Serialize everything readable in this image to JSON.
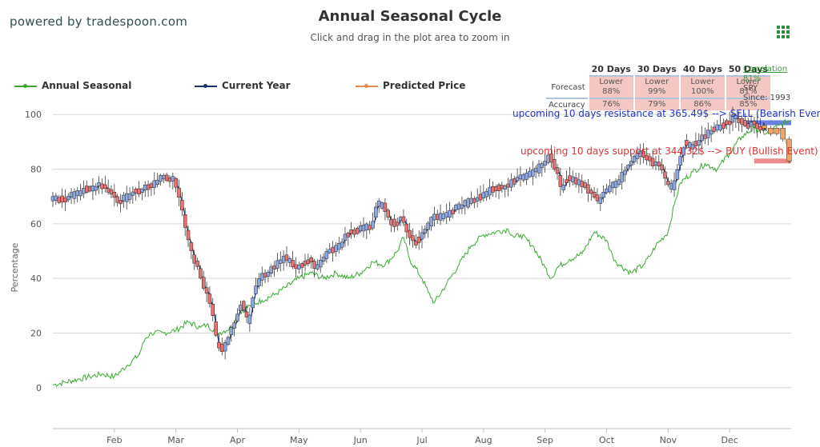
{
  "header": {
    "powered_by": "powered by tradespoon.com",
    "title": "Annual Seasonal Cycle",
    "subtitle": "Click and drag in the plot area to zoom in"
  },
  "legend": [
    {
      "name": "Annual Seasonal",
      "color": "#3aa832"
    },
    {
      "name": "Current Year",
      "color": "#1a2f6e"
    },
    {
      "name": "Predicted Price",
      "color": "#e8894a"
    }
  ],
  "stats_table": {
    "columns": [
      "20 Days",
      "30 Days",
      "40 Days",
      "50 Days"
    ],
    "forecast_label": "Forecast",
    "accuracy_label": "Accuracy",
    "forecast": [
      {
        "dir": "Lower",
        "pct": "88%"
      },
      {
        "dir": "Lower",
        "pct": "99%"
      },
      {
        "dir": "Lower",
        "pct": "100%"
      },
      {
        "dir": "Lower",
        "pct": "81%"
      }
    ],
    "accuracy": [
      "76%",
      "79%",
      "86%",
      "85%"
    ]
  },
  "correlation": {
    "label": "Correlation",
    "value": "81%",
    "symbol": "SPY",
    "since": "Since: 1993"
  },
  "annotations": {
    "resistance": "upcoming 10 days resistance at 365.49$ --> SELL (Bearish Even",
    "support": "upcoming 10 days support at 344.32$ --> BUY (Bullish Event)"
  },
  "colors": {
    "seasonal": "#3aa832",
    "current": "#1a2f6e",
    "candle_up": "#8fa8e0",
    "candle_down": "#e57373",
    "predicted": "#f4a460",
    "resistance": "#6b7fe3",
    "support": "#ec8a8a",
    "grid": "#d8d8d8"
  },
  "chart_data": {
    "type": "line",
    "ylabel": "Percentage",
    "ylim": [
      -15,
      103
    ],
    "yticks": [
      0,
      20,
      40,
      60,
      80,
      100
    ],
    "xlim": [
      0,
      12
    ],
    "months": [
      "Feb",
      "Mar",
      "Apr",
      "May",
      "Jun",
      "Jul",
      "Aug",
      "Sep",
      "Oct",
      "Nov",
      "Dec"
    ],
    "month_positions": [
      1,
      2,
      3,
      4,
      5,
      6,
      7,
      8,
      9,
      10,
      11
    ],
    "resistance_level": 97,
    "support_level": 83,
    "series": [
      {
        "name": "Annual Seasonal",
        "points": [
          [
            0,
            1
          ],
          [
            0.2,
            2
          ],
          [
            0.4,
            3
          ],
          [
            0.6,
            4
          ],
          [
            0.8,
            5
          ],
          [
            1.0,
            4
          ],
          [
            1.2,
            8
          ],
          [
            1.4,
            12
          ],
          [
            1.5,
            18
          ],
          [
            1.6,
            20
          ],
          [
            1.8,
            20
          ],
          [
            2.0,
            21
          ],
          [
            2.2,
            24
          ],
          [
            2.4,
            22
          ],
          [
            2.5,
            23
          ],
          [
            2.7,
            20
          ],
          [
            2.9,
            22
          ],
          [
            3.0,
            27
          ],
          [
            3.2,
            30
          ],
          [
            3.4,
            32
          ],
          [
            3.6,
            34
          ],
          [
            3.8,
            37
          ],
          [
            4.0,
            40
          ],
          [
            4.2,
            42
          ],
          [
            4.4,
            40
          ],
          [
            4.6,
            42
          ],
          [
            4.8,
            40
          ],
          [
            5.0,
            42
          ],
          [
            5.2,
            46
          ],
          [
            5.4,
            45
          ],
          [
            5.6,
            50
          ],
          [
            5.7,
            55
          ],
          [
            5.8,
            47
          ],
          [
            6.0,
            40
          ],
          [
            6.1,
            35
          ],
          [
            6.2,
            31
          ],
          [
            6.4,
            38
          ],
          [
            6.6,
            45
          ],
          [
            6.8,
            52
          ],
          [
            7.0,
            56
          ],
          [
            7.2,
            57
          ],
          [
            7.4,
            58
          ],
          [
            7.5,
            55
          ],
          [
            7.6,
            56
          ],
          [
            7.8,
            52
          ],
          [
            8.0,
            44
          ],
          [
            8.1,
            40
          ],
          [
            8.2,
            44
          ],
          [
            8.4,
            47
          ],
          [
            8.6,
            49
          ],
          [
            8.8,
            57
          ],
          [
            9.0,
            54
          ],
          [
            9.1,
            48
          ],
          [
            9.2,
            45
          ],
          [
            9.4,
            42
          ],
          [
            9.6,
            45
          ],
          [
            9.7,
            48
          ],
          [
            9.8,
            52
          ],
          [
            10.0,
            57
          ],
          [
            10.1,
            67
          ],
          [
            10.2,
            75
          ],
          [
            10.4,
            79
          ],
          [
            10.6,
            82
          ],
          [
            10.8,
            80
          ],
          [
            11.0,
            86
          ],
          [
            11.2,
            92
          ],
          [
            11.4,
            95
          ],
          [
            11.6,
            93
          ],
          [
            11.8,
            96
          ],
          [
            12.0,
            98
          ]
        ]
      },
      {
        "name": "Current Year",
        "points": [
          [
            0,
            69
          ],
          [
            0.2,
            69
          ],
          [
            0.4,
            71
          ],
          [
            0.6,
            73
          ],
          [
            0.8,
            74
          ],
          [
            1.0,
            71
          ],
          [
            1.1,
            68
          ],
          [
            1.3,
            71
          ],
          [
            1.5,
            73
          ],
          [
            1.7,
            75
          ],
          [
            1.8,
            77
          ],
          [
            2.0,
            76
          ],
          [
            2.1,
            68
          ],
          [
            2.2,
            57
          ],
          [
            2.3,
            48
          ],
          [
            2.4,
            43
          ],
          [
            2.5,
            36
          ],
          [
            2.6,
            30
          ],
          [
            2.7,
            16
          ],
          [
            2.8,
            14
          ],
          [
            2.9,
            20
          ],
          [
            3.0,
            25
          ],
          [
            3.1,
            31
          ],
          [
            3.2,
            24
          ],
          [
            3.3,
            35
          ],
          [
            3.4,
            40
          ],
          [
            3.6,
            44
          ],
          [
            3.8,
            48
          ],
          [
            4.0,
            44
          ],
          [
            4.2,
            47
          ],
          [
            4.3,
            44
          ],
          [
            4.5,
            50
          ],
          [
            4.7,
            52
          ],
          [
            4.8,
            56
          ],
          [
            5.0,
            58
          ],
          [
            5.2,
            59
          ],
          [
            5.3,
            67
          ],
          [
            5.4,
            67
          ],
          [
            5.5,
            61
          ],
          [
            5.6,
            60
          ],
          [
            5.7,
            62
          ],
          [
            5.8,
            57
          ],
          [
            5.9,
            53
          ],
          [
            6.0,
            55
          ],
          [
            6.2,
            62
          ],
          [
            6.4,
            63
          ],
          [
            6.6,
            66
          ],
          [
            6.8,
            68
          ],
          [
            7.0,
            70
          ],
          [
            7.2,
            73
          ],
          [
            7.4,
            74
          ],
          [
            7.6,
            77
          ],
          [
            7.8,
            78
          ],
          [
            8.0,
            82
          ],
          [
            8.1,
            85
          ],
          [
            8.2,
            80
          ],
          [
            8.3,
            73
          ],
          [
            8.4,
            77
          ],
          [
            8.6,
            75
          ],
          [
            8.8,
            71
          ],
          [
            8.9,
            68
          ],
          [
            9.0,
            72
          ],
          [
            9.2,
            75
          ],
          [
            9.4,
            82
          ],
          [
            9.6,
            86
          ],
          [
            9.7,
            84
          ],
          [
            9.8,
            82
          ],
          [
            9.9,
            81
          ],
          [
            10.0,
            75
          ],
          [
            10.1,
            73
          ],
          [
            10.2,
            82
          ],
          [
            10.3,
            90
          ],
          [
            10.4,
            88
          ],
          [
            10.6,
            92
          ],
          [
            10.8,
            95
          ],
          [
            11.0,
            97
          ],
          [
            11.1,
            99
          ],
          [
            11.2,
            98
          ],
          [
            11.3,
            96
          ],
          [
            11.4,
            97
          ],
          [
            11.5,
            95
          ],
          [
            11.6,
            94
          ]
        ]
      },
      {
        "name": "Predicted Price",
        "points": [
          [
            11.5,
            96
          ],
          [
            11.6,
            95
          ],
          [
            11.7,
            93
          ],
          [
            11.8,
            95
          ],
          [
            11.9,
            91
          ],
          [
            12.0,
            83
          ]
        ]
      }
    ]
  }
}
